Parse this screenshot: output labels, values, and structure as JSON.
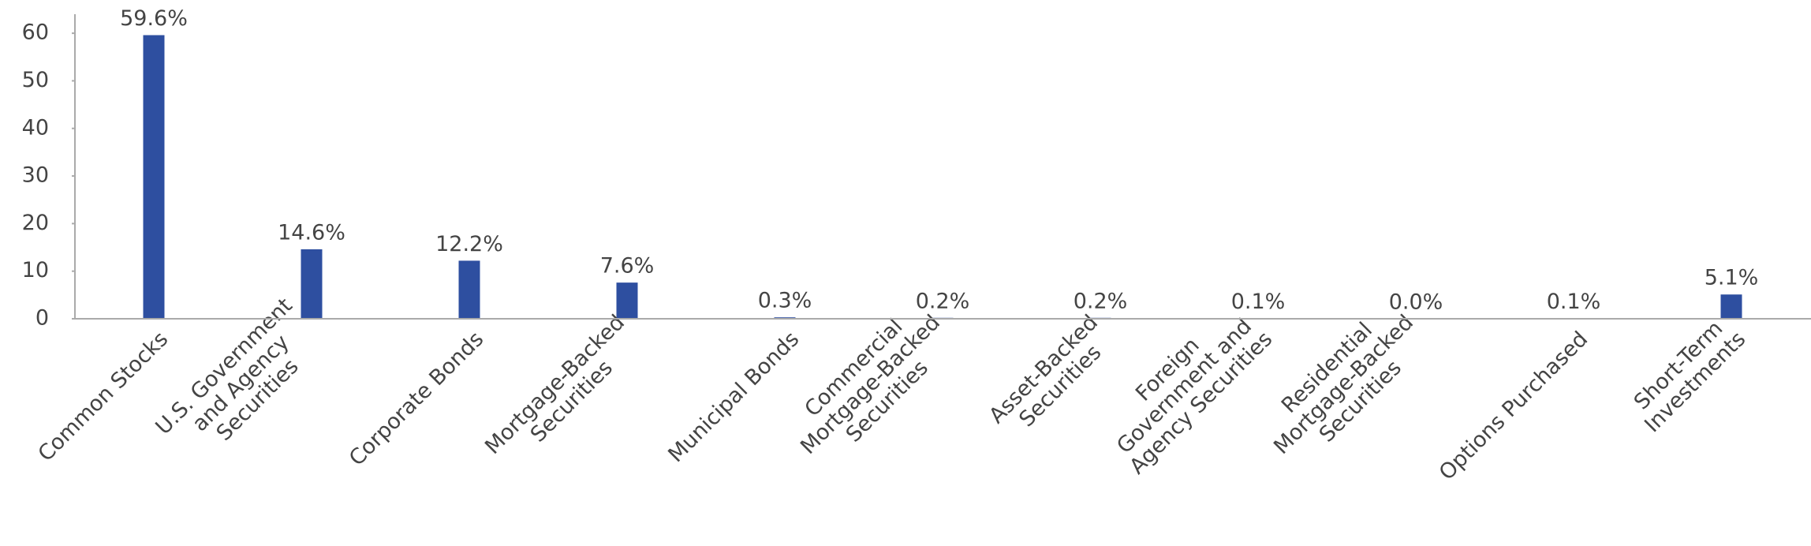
{
  "chart_data": {
    "type": "bar",
    "categories": [
      [
        "Common Stocks"
      ],
      [
        "U.S. Government",
        "and Agency",
        "Securities"
      ],
      [
        "Corporate Bonds"
      ],
      [
        "Mortgage-Backed",
        "Securities"
      ],
      [
        "Municipal Bonds"
      ],
      [
        "Commercial",
        "Mortgage-Backed",
        "Securities"
      ],
      [
        "Asset-Backed",
        "Securities"
      ],
      [
        "Foreign",
        "Government and",
        "Agency Securities"
      ],
      [
        "Residential",
        "Mortgage-Backed",
        "Securities"
      ],
      [
        "Options Purchased"
      ],
      [
        "Short-Term",
        "Investments"
      ]
    ],
    "values": [
      59.6,
      14.6,
      12.2,
      7.6,
      0.3,
      0.2,
      0.2,
      0.1,
      0.0,
      0.1,
      5.1
    ],
    "value_labels": [
      "59.6%",
      "14.6%",
      "12.2%",
      "7.6%",
      "0.3%",
      "0.2%",
      "0.2%",
      "0.1%",
      "0.0%",
      "0.1%",
      "5.1%"
    ],
    "color": "#2e4fa0",
    "ylim": [
      0,
      64
    ],
    "yticks": [
      0,
      10,
      20,
      30,
      40,
      50,
      60
    ]
  }
}
